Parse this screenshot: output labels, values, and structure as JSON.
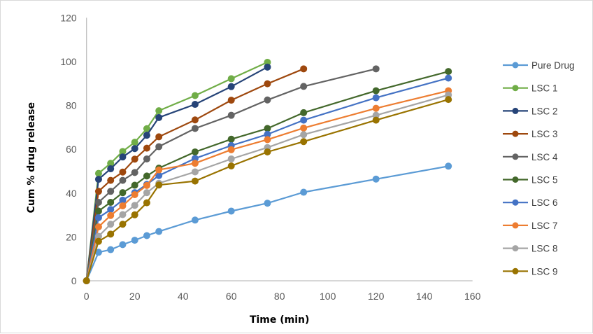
{
  "chart_data": {
    "type": "line",
    "title": "",
    "xlabel": "Time (min)",
    "ylabel": "Cum % drug release",
    "xlim": [
      0,
      160
    ],
    "ylim": [
      0,
      120
    ],
    "xticks": [
      "0",
      "20",
      "40",
      "60",
      "80",
      "100",
      "120",
      "140",
      "160"
    ],
    "yticks": [
      "0",
      "20",
      "40",
      "60",
      "80",
      "100",
      "120"
    ],
    "xtick_values": [
      0,
      20,
      40,
      60,
      80,
      100,
      120,
      140,
      160
    ],
    "ytick_values": [
      0,
      20,
      40,
      60,
      80,
      100,
      120
    ],
    "grid": false,
    "legend_position": "right",
    "x": [
      0,
      5,
      10,
      15,
      20,
      25,
      30,
      45,
      60,
      75,
      90,
      120,
      150
    ],
    "series": [
      {
        "name": "Pure Drug",
        "color": "#5b9bd5",
        "x": [
          0,
          5,
          10,
          15,
          20,
          25,
          30,
          45,
          60,
          75,
          90,
          120,
          150
        ],
        "values": [
          0,
          13,
          14.2,
          16.5,
          18.5,
          20.6,
          22.5,
          27.7,
          31.8,
          35.4,
          40.4,
          46.4,
          52.3
        ]
      },
      {
        "name": "LSC 1",
        "color": "#70ad47",
        "x": [
          0,
          5,
          10,
          15,
          20,
          25,
          30,
          45,
          60,
          75
        ],
        "values": [
          0,
          49,
          53.6,
          59,
          63.2,
          69.4,
          77.6,
          84.5,
          92.2,
          99.7
        ]
      },
      {
        "name": "LSC 2",
        "color": "#264478",
        "x": [
          0,
          5,
          10,
          15,
          20,
          25,
          30,
          45,
          60,
          75
        ],
        "values": [
          0,
          46.3,
          51.1,
          56.5,
          60.3,
          66.4,
          74.5,
          80.5,
          88.6,
          97.5
        ]
      },
      {
        "name": "LSC 3",
        "color": "#9e480e",
        "x": [
          0,
          5,
          10,
          15,
          20,
          25,
          30,
          45,
          60,
          75,
          90
        ],
        "values": [
          0,
          40.8,
          45.8,
          49.6,
          55.5,
          60.5,
          65.7,
          73.4,
          82.4,
          89.9,
          96.7
        ]
      },
      {
        "name": "LSC 4",
        "color": "#636363",
        "x": [
          0,
          5,
          10,
          15,
          20,
          25,
          30,
          45,
          60,
          75,
          90,
          120
        ],
        "values": [
          0,
          35.8,
          40.8,
          45.8,
          49.4,
          55.6,
          61.2,
          69.5,
          75.5,
          82.5,
          88.7,
          96.7
        ]
      },
      {
        "name": "LSC 5",
        "color": "#43682b",
        "x": [
          0,
          5,
          10,
          15,
          20,
          25,
          30,
          45,
          60,
          75,
          90,
          120,
          150
        ],
        "values": [
          0,
          31.8,
          35.8,
          40.2,
          43.6,
          47.8,
          51.4,
          58.8,
          64.6,
          69.5,
          76.7,
          86.7,
          95.5
        ]
      },
      {
        "name": "LSC 6",
        "color": "#4472c4",
        "x": [
          0,
          5,
          10,
          15,
          20,
          25,
          30,
          45,
          60,
          75,
          90,
          120,
          150
        ],
        "values": [
          0,
          28.8,
          32.5,
          36.8,
          40.2,
          44,
          48,
          55.8,
          61.7,
          66.8,
          73.3,
          83.5,
          92.5
        ]
      },
      {
        "name": "LSC 7",
        "color": "#ed7d31",
        "x": [
          0,
          5,
          10,
          15,
          20,
          25,
          30,
          45,
          60,
          75,
          90,
          120,
          150
        ],
        "values": [
          0,
          24.6,
          29.8,
          34.2,
          39.3,
          43.5,
          50.6,
          53.6,
          59.8,
          64.4,
          69.7,
          78.7,
          86.7
        ]
      },
      {
        "name": "LSC 8",
        "color": "#a5a5a5",
        "x": [
          0,
          5,
          10,
          15,
          20,
          25,
          30,
          45,
          60,
          75,
          90,
          120,
          150
        ],
        "values": [
          0,
          20.3,
          25.8,
          30.2,
          34.4,
          40.2,
          44.5,
          49.7,
          55.6,
          60.8,
          66.7,
          75.5,
          84.8
        ]
      },
      {
        "name": "LSC 9",
        "color": "#997300",
        "x": [
          0,
          5,
          10,
          15,
          20,
          25,
          30,
          45,
          60,
          75,
          90,
          120,
          150
        ],
        "values": [
          0,
          18,
          21.3,
          25.8,
          30.1,
          35.6,
          43.7,
          45.5,
          52.4,
          58.8,
          63.5,
          73.3,
          82.7
        ]
      }
    ]
  }
}
